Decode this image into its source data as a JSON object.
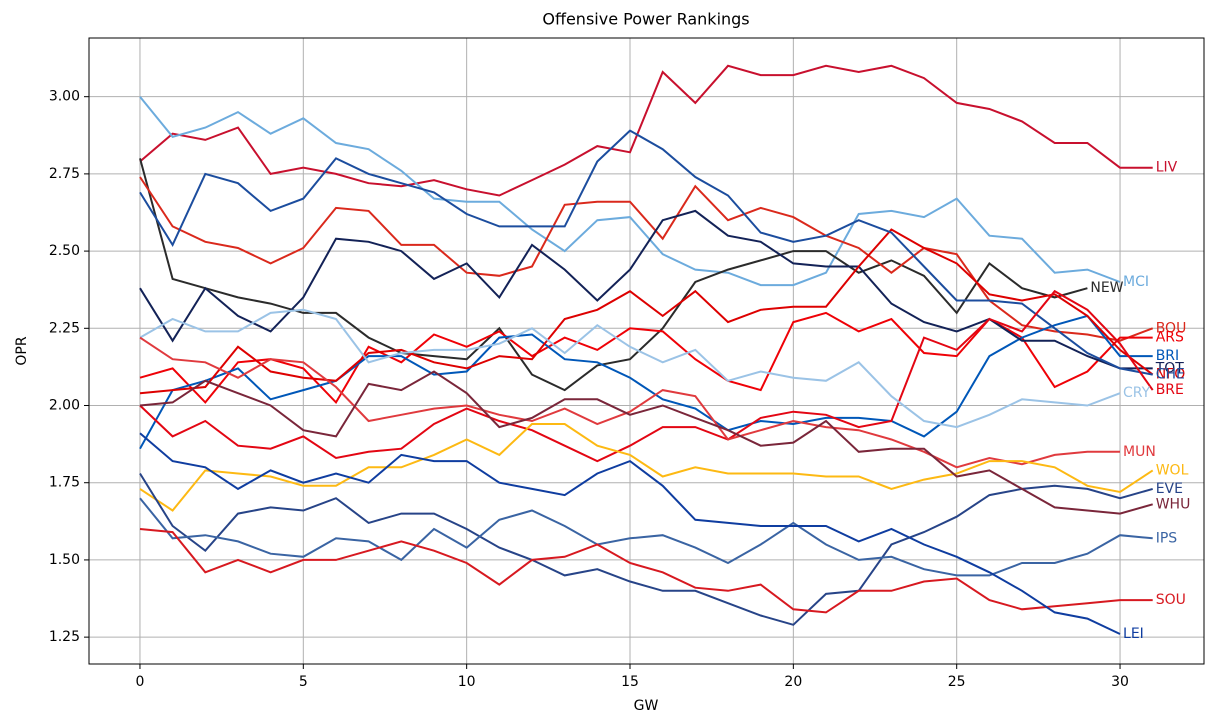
{
  "chart_data": {
    "type": "line",
    "title": "Offensive Power Rankings",
    "xlabel": "GW",
    "ylabel": "OPR",
    "x": [
      0,
      1,
      2,
      3,
      4,
      5,
      6,
      7,
      8,
      9,
      10,
      11,
      12,
      13,
      14,
      15,
      16,
      17,
      18,
      19,
      20,
      21,
      22,
      23,
      24,
      25,
      26,
      27,
      28,
      29,
      30,
      31
    ],
    "xlim": [
      -1.56,
      32.57
    ],
    "ylim": [
      1.163,
      3.19
    ],
    "xticks": [
      0,
      5,
      10,
      15,
      20,
      25,
      30
    ],
    "yticks": [
      {
        "value": 1.25,
        "label": "1.25"
      },
      {
        "value": 1.5,
        "label": "1.50"
      },
      {
        "value": 1.75,
        "label": "1.75"
      },
      {
        "value": 2,
        "label": "2.00"
      },
      {
        "value": 2.25,
        "label": "2.25"
      },
      {
        "value": 2.5,
        "label": "2.50"
      },
      {
        "value": 2.75,
        "label": "2.75"
      },
      {
        "value": 3,
        "label": "3.00"
      }
    ],
    "grid": true,
    "series": [
      {
        "name": "LIV",
        "color": "#c8102e",
        "values": [
          2.79,
          2.88,
          2.86,
          2.9,
          2.75,
          2.77,
          2.75,
          2.72,
          2.71,
          2.73,
          2.7,
          2.68,
          2.73,
          2.78,
          2.84,
          2.82,
          3.08,
          2.98,
          3.1,
          3.07,
          3.07,
          3.1,
          3.08,
          3.1,
          3.06,
          2.98,
          2.96,
          2.92,
          2.85,
          2.85,
          2.77,
          2.77
        ]
      },
      {
        "name": "MCI",
        "color": "#6cabdd",
        "values": [
          3.0,
          2.87,
          2.9,
          2.95,
          2.88,
          2.93,
          2.85,
          2.83,
          2.76,
          2.67,
          2.66,
          2.66,
          2.57,
          2.5,
          2.6,
          2.61,
          2.49,
          2.44,
          2.43,
          2.39,
          2.39,
          2.43,
          2.62,
          2.63,
          2.61,
          2.67,
          2.55,
          2.54,
          2.43,
          2.44,
          2.4,
          null
        ]
      },
      {
        "name": "NEW",
        "color": "#2b2b2b",
        "values": [
          2.8,
          2.41,
          2.38,
          2.35,
          2.33,
          2.3,
          2.3,
          2.22,
          2.17,
          2.16,
          2.15,
          2.25,
          2.1,
          2.05,
          2.13,
          2.15,
          2.25,
          2.4,
          2.44,
          2.47,
          2.5,
          2.5,
          2.43,
          2.47,
          2.42,
          2.3,
          2.46,
          2.38,
          2.35,
          2.38,
          null,
          null
        ]
      },
      {
        "name": "BOU",
        "color": "#da291c",
        "values": [
          2.74,
          2.58,
          2.53,
          2.51,
          2.46,
          2.51,
          2.64,
          2.63,
          2.52,
          2.52,
          2.43,
          2.42,
          2.45,
          2.65,
          2.66,
          2.66,
          2.54,
          2.71,
          2.6,
          2.64,
          2.61,
          2.55,
          2.51,
          2.43,
          2.51,
          2.49,
          2.34,
          2.26,
          2.24,
          2.23,
          2.21,
          2.25
        ]
      },
      {
        "name": "ARS",
        "color": "#ef0107",
        "values": [
          2.09,
          2.12,
          2.01,
          2.14,
          2.15,
          2.12,
          2.01,
          2.19,
          2.14,
          2.23,
          2.19,
          2.24,
          2.16,
          2.22,
          2.18,
          2.25,
          2.24,
          2.15,
          2.08,
          2.05,
          2.27,
          2.3,
          2.24,
          2.28,
          2.17,
          2.16,
          2.28,
          2.22,
          2.06,
          2.11,
          2.22,
          2.22
        ]
      },
      {
        "name": "BRI",
        "color": "#0057b8",
        "values": [
          1.86,
          2.05,
          2.08,
          2.12,
          2.02,
          2.05,
          2.08,
          2.16,
          2.16,
          2.1,
          2.11,
          2.22,
          2.23,
          2.15,
          2.14,
          2.09,
          2.02,
          1.99,
          1.92,
          1.95,
          1.94,
          1.96,
          1.96,
          1.95,
          1.9,
          1.98,
          2.16,
          2.22,
          2.26,
          2.29,
          2.16,
          2.16
        ]
      },
      {
        "name": "TOT",
        "color": "#132257",
        "values": [
          2.38,
          2.21,
          2.38,
          2.29,
          2.24,
          2.35,
          2.54,
          2.53,
          2.5,
          2.41,
          2.46,
          2.35,
          2.52,
          2.44,
          2.34,
          2.44,
          2.6,
          2.63,
          2.55,
          2.53,
          2.46,
          2.45,
          2.45,
          2.33,
          2.27,
          2.24,
          2.28,
          2.21,
          2.21,
          2.16,
          2.12,
          2.12
        ]
      },
      {
        "name": "NFO",
        "color": "#dd0000",
        "values": [
          2.04,
          2.05,
          2.06,
          2.19,
          2.11,
          2.09,
          2.08,
          2.17,
          2.18,
          2.14,
          2.12,
          2.16,
          2.15,
          2.28,
          2.31,
          2.37,
          2.29,
          2.37,
          2.27,
          2.31,
          2.32,
          2.32,
          2.45,
          2.57,
          2.51,
          2.46,
          2.36,
          2.34,
          2.36,
          2.29,
          2.18,
          2.1
        ]
      },
      {
        "name": "CHE",
        "color": "#1c4d9e",
        "values": [
          2.69,
          2.52,
          2.75,
          2.72,
          2.63,
          2.67,
          2.8,
          2.75,
          2.72,
          2.69,
          2.62,
          2.58,
          2.58,
          2.58,
          2.79,
          2.89,
          2.83,
          2.74,
          2.68,
          2.56,
          2.53,
          2.55,
          2.6,
          2.56,
          2.45,
          2.34,
          2.34,
          2.33,
          2.25,
          2.17,
          2.12,
          2.1
        ]
      },
      {
        "name": "BRE",
        "color": "#e30613",
        "values": [
          2.0,
          1.9,
          1.95,
          1.87,
          1.86,
          1.9,
          1.83,
          1.85,
          1.86,
          1.94,
          1.99,
          1.95,
          1.92,
          1.87,
          1.82,
          1.87,
          1.93,
          1.93,
          1.89,
          1.96,
          1.98,
          1.97,
          1.93,
          1.95,
          2.22,
          2.18,
          2.28,
          2.24,
          2.37,
          2.31,
          2.2,
          2.05
        ]
      },
      {
        "name": "CRY",
        "color": "#9bc3e6",
        "values": [
          2.22,
          2.28,
          2.24,
          2.24,
          2.3,
          2.31,
          2.28,
          2.14,
          2.17,
          2.18,
          2.18,
          2.2,
          2.25,
          2.17,
          2.26,
          2.19,
          2.14,
          2.18,
          2.08,
          2.11,
          2.09,
          2.08,
          2.14,
          2.03,
          1.95,
          1.93,
          1.97,
          2.02,
          2.01,
          2.0,
          2.04,
          null
        ]
      },
      {
        "name": "MUN",
        "color": "#e03a3e",
        "values": [
          2.22,
          2.15,
          2.14,
          2.09,
          2.15,
          2.14,
          2.06,
          1.95,
          1.97,
          1.99,
          2.0,
          1.97,
          1.95,
          1.99,
          1.94,
          1.98,
          2.05,
          2.03,
          1.89,
          1.92,
          1.95,
          1.93,
          1.92,
          1.89,
          1.85,
          1.8,
          1.83,
          1.81,
          1.84,
          1.85,
          1.85,
          null
        ]
      },
      {
        "name": "WOL",
        "color": "#fdb913",
        "values": [
          1.73,
          1.66,
          1.79,
          1.78,
          1.77,
          1.74,
          1.74,
          1.8,
          1.8,
          1.84,
          1.89,
          1.84,
          1.94,
          1.94,
          1.87,
          1.84,
          1.77,
          1.8,
          1.78,
          1.78,
          1.78,
          1.77,
          1.77,
          1.73,
          1.76,
          1.78,
          1.82,
          1.82,
          1.8,
          1.74,
          1.72,
          1.79
        ]
      },
      {
        "name": "EVE",
        "color": "#274488",
        "values": [
          1.78,
          1.61,
          1.53,
          1.65,
          1.67,
          1.66,
          1.7,
          1.62,
          1.65,
          1.65,
          1.6,
          1.54,
          1.5,
          1.45,
          1.47,
          1.43,
          1.4,
          1.4,
          1.36,
          1.32,
          1.29,
          1.39,
          1.4,
          1.55,
          1.59,
          1.64,
          1.71,
          1.73,
          1.74,
          1.73,
          1.7,
          1.73
        ]
      },
      {
        "name": "WHU",
        "color": "#7a263a",
        "values": [
          2.0,
          2.01,
          2.08,
          2.04,
          2.0,
          1.92,
          1.9,
          2.07,
          2.05,
          2.11,
          2.04,
          1.93,
          1.96,
          2.02,
          2.02,
          1.97,
          2.0,
          1.96,
          1.92,
          1.87,
          1.88,
          1.95,
          1.85,
          1.86,
          1.86,
          1.77,
          1.79,
          1.73,
          1.67,
          1.66,
          1.65,
          1.68
        ]
      },
      {
        "name": "IPS",
        "color": "#3a64a3",
        "values": [
          1.7,
          1.57,
          1.58,
          1.56,
          1.52,
          1.51,
          1.57,
          1.56,
          1.5,
          1.6,
          1.54,
          1.63,
          1.66,
          1.61,
          1.55,
          1.57,
          1.58,
          1.54,
          1.49,
          1.55,
          1.62,
          1.55,
          1.5,
          1.51,
          1.47,
          1.45,
          1.45,
          1.49,
          1.49,
          1.52,
          1.58,
          1.57
        ]
      },
      {
        "name": "SOU",
        "color": "#d71920",
        "values": [
          1.6,
          1.59,
          1.46,
          1.5,
          1.46,
          1.5,
          1.5,
          1.53,
          1.56,
          1.53,
          1.49,
          1.42,
          1.5,
          1.51,
          1.55,
          1.49,
          1.46,
          1.41,
          1.4,
          1.42,
          1.34,
          1.33,
          1.4,
          1.4,
          1.43,
          1.44,
          1.37,
          1.34,
          1.35,
          1.36,
          1.37,
          1.37
        ]
      },
      {
        "name": "LEI",
        "color": "#0f3da0",
        "values": [
          1.91,
          1.82,
          1.8,
          1.73,
          1.79,
          1.75,
          1.78,
          1.75,
          1.84,
          1.82,
          1.82,
          1.75,
          1.73,
          1.71,
          1.78,
          1.82,
          1.74,
          1.63,
          1.62,
          1.61,
          1.61,
          1.61,
          1.56,
          1.6,
          1.55,
          1.51,
          1.46,
          1.4,
          1.33,
          1.31,
          1.26,
          null
        ]
      }
    ]
  }
}
